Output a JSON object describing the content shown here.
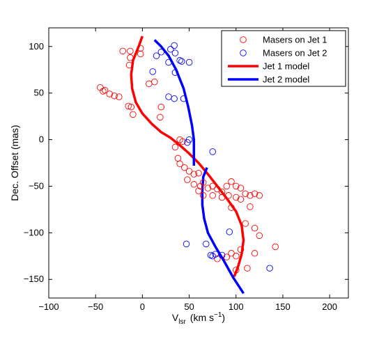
{
  "chart_data": {
    "type": "scatter",
    "xlabel": "V",
    "xlabel_sub": "lsr",
    "xlabel_unit": "(km s",
    "xlabel_unit_sup": "−1",
    "xlabel_unit_close": ")",
    "ylabel": "Dec. Offset (mas)",
    "xlim": [
      -100,
      220
    ],
    "ylim": [
      -170,
      120
    ],
    "xticks": [
      -100,
      -50,
      0,
      50,
      100,
      150,
      200
    ],
    "xtick_labels": [
      "−100",
      "−50",
      "0",
      "50",
      "100",
      "150",
      "200"
    ],
    "yticks": [
      -150,
      -100,
      -50,
      0,
      50,
      100
    ],
    "ytick_labels": [
      "−150",
      "−100",
      "−50",
      "0",
      "50",
      "100"
    ],
    "grid": false,
    "legend_position": "top-right",
    "legend": [
      {
        "label": "Masers on Jet 1",
        "style": "marker",
        "color": "#ff0000"
      },
      {
        "label": "Masers on Jet 2",
        "style": "marker",
        "color": "#0000ff"
      },
      {
        "label": "Jet 1 model",
        "style": "line",
        "color": "#ff0000"
      },
      {
        "label": "Jet 2 model",
        "style": "line",
        "color": "#0000ff"
      }
    ],
    "series": [
      {
        "name": "Masers on Jet 1",
        "kind": "scatter",
        "color": "#ff0000",
        "points": [
          [
            -13,
            95
          ],
          [
            -2,
            98
          ],
          [
            -13,
            88
          ],
          [
            -14,
            80
          ],
          [
            -2,
            92
          ],
          [
            -21,
            95
          ],
          [
            -45,
            56
          ],
          [
            -42,
            52
          ],
          [
            -40,
            53
          ],
          [
            -35,
            49
          ],
          [
            -30,
            47
          ],
          [
            -25,
            46
          ],
          [
            -15,
            36
          ],
          [
            -12,
            35
          ],
          [
            -10,
            27
          ],
          [
            13,
            62
          ],
          [
            7,
            60
          ],
          [
            19,
            24
          ],
          [
            20,
            35
          ],
          [
            40,
            0
          ],
          [
            43,
            -2
          ],
          [
            35,
            -8
          ],
          [
            38,
            -20
          ],
          [
            40,
            -26
          ],
          [
            45,
            -30
          ],
          [
            50,
            -34
          ],
          [
            55,
            -37
          ],
          [
            60,
            -36
          ],
          [
            48,
            -43
          ],
          [
            55,
            -48
          ],
          [
            62,
            -50
          ],
          [
            65,
            -46
          ],
          [
            70,
            -52
          ],
          [
            75,
            -50
          ],
          [
            80,
            -53
          ],
          [
            85,
            -56
          ],
          [
            90,
            -50
          ],
          [
            95,
            -45
          ],
          [
            100,
            -50
          ],
          [
            105,
            -52
          ],
          [
            110,
            -58
          ],
          [
            115,
            -60
          ],
          [
            120,
            -58
          ],
          [
            125,
            -60
          ],
          [
            92,
            -60
          ],
          [
            100,
            -62
          ],
          [
            105,
            -64
          ],
          [
            115,
            -72
          ],
          [
            60,
            -55
          ],
          [
            65,
            -60
          ],
          [
            75,
            -60
          ],
          [
            85,
            -62
          ],
          [
            95,
            -73
          ],
          [
            110,
            -90
          ],
          [
            120,
            -95
          ],
          [
            125,
            -103
          ],
          [
            142,
            -115
          ],
          [
            120,
            -122
          ],
          [
            105,
            -118
          ],
          [
            100,
            -125
          ],
          [
            95,
            -122
          ],
          [
            90,
            -126
          ],
          [
            80,
            -128
          ],
          [
            112,
            -138
          ],
          [
            100,
            -140
          ]
        ]
      },
      {
        "name": "Masers on Jet 2",
        "kind": "scatter",
        "color": "#0000ff",
        "points": [
          [
            15,
            90
          ],
          [
            20,
            94
          ],
          [
            30,
            97
          ],
          [
            34,
            101
          ],
          [
            35,
            93
          ],
          [
            40,
            85
          ],
          [
            28,
            83
          ],
          [
            50,
            83
          ],
          [
            42,
            84
          ],
          [
            35,
            72
          ],
          [
            11,
            73
          ],
          [
            28,
            46
          ],
          [
            34,
            44
          ],
          [
            44,
            44
          ],
          [
            50,
            0
          ],
          [
            48,
            -3
          ],
          [
            75,
            -13
          ],
          [
            93,
            -99
          ],
          [
            47,
            -112
          ],
          [
            68,
            -112
          ],
          [
            73,
            -124
          ],
          [
            75,
            -125
          ],
          [
            78,
            -123
          ],
          [
            85,
            -124
          ],
          [
            136,
            -138
          ]
        ]
      },
      {
        "name": "Jet 1 model",
        "kind": "line",
        "color": "#ff0000",
        "points": [
          [
            0,
            111
          ],
          [
            -4,
            100
          ],
          [
            -10,
            85
          ],
          [
            -12,
            70
          ],
          [
            -11,
            55
          ],
          [
            -7,
            40
          ],
          [
            0,
            28
          ],
          [
            10,
            17
          ],
          [
            20,
            8
          ],
          [
            30,
            2
          ],
          [
            40,
            -6
          ],
          [
            50,
            -15
          ],
          [
            60,
            -25
          ],
          [
            70,
            -37
          ],
          [
            80,
            -50
          ],
          [
            90,
            -63
          ],
          [
            100,
            -77
          ],
          [
            106,
            -92
          ],
          [
            108,
            -108
          ],
          [
            106,
            -123
          ],
          [
            102,
            -137
          ],
          [
            98,
            -147
          ]
        ]
      },
      {
        "name": "Jet 2 model",
        "kind": "line",
        "color": "#0000ff",
        "points": [
          [
            13,
            107
          ],
          [
            20,
            100
          ],
          [
            28,
            90
          ],
          [
            36,
            75
          ],
          [
            44,
            55
          ],
          [
            49,
            35
          ],
          [
            53,
            15
          ],
          [
            55,
            0
          ],
          [
            55,
            -12
          ],
          [
            55,
            -25
          ],
          [
            55,
            -28
          ]
        ]
      },
      {
        "name": "Jet 2 model",
        "kind": "line",
        "color": "#0000ff",
        "points": [
          [
            69,
            -30
          ],
          [
            65,
            -40
          ],
          [
            64,
            -55
          ],
          [
            64,
            -70
          ],
          [
            66,
            -85
          ],
          [
            70,
            -100
          ],
          [
            78,
            -115
          ],
          [
            87,
            -130
          ],
          [
            97,
            -148
          ],
          [
            108,
            -165
          ]
        ]
      }
    ]
  }
}
